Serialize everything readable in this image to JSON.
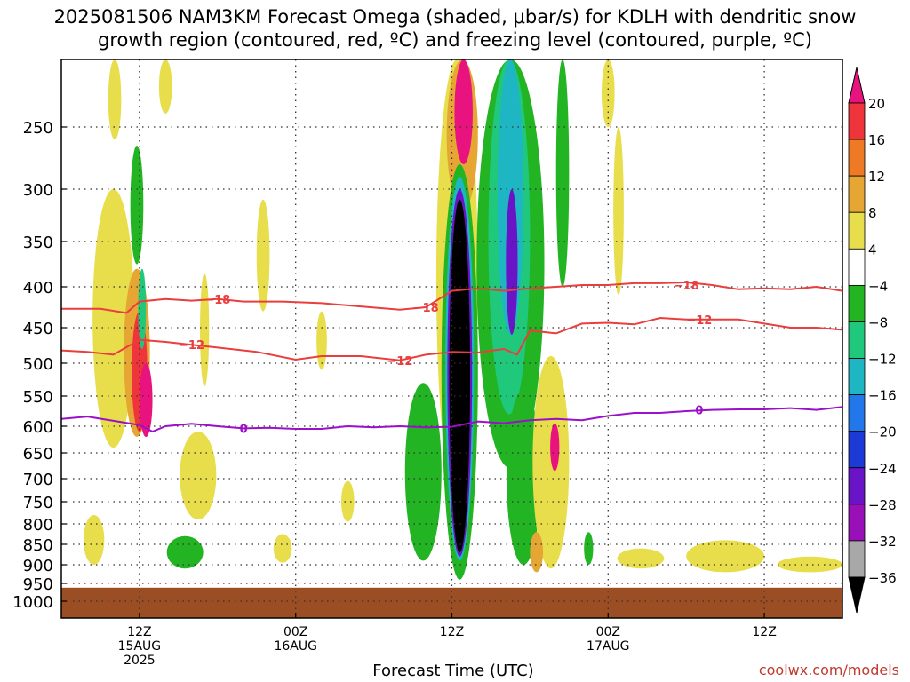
{
  "title": {
    "line1": "2025081506 NAM3KM Forecast Omega (shaded, μbar/s) for KDLH with dendritic snow",
    "line2": "growth region (contoured, red, ºC) and freezing level (contoured, purple, ºC)"
  },
  "credit": "coolwx.com/models",
  "chart_data": {
    "type": "heatmap",
    "xlabel": "Forecast Time (UTC)",
    "ylabel": "",
    "x_unit": "hours from 2025081506",
    "xlim": [
      0,
      60
    ],
    "ylim": [
      1050,
      200
    ],
    "y_ticks": [
      250,
      300,
      350,
      400,
      450,
      500,
      550,
      600,
      650,
      700,
      750,
      800,
      850,
      900,
      950,
      1000
    ],
    "x_ticks": [
      {
        "t": 6,
        "lines": [
          "12Z",
          "15AUG",
          "2025"
        ]
      },
      {
        "t": 18,
        "lines": [
          "00Z",
          "16AUG"
        ]
      },
      {
        "t": 30,
        "lines": [
          "12Z",
          ""
        ]
      },
      {
        "t": 42,
        "lines": [
          "00Z",
          "17AUG"
        ]
      },
      {
        "t": 54,
        "lines": [
          "12Z",
          ""
        ]
      }
    ],
    "colorbar": {
      "labels": [
        "20",
        "16",
        "12",
        "8",
        "4",
        "−4",
        "−8",
        "−12",
        "−16",
        "−20",
        "−24",
        "−28",
        "−32",
        "−36"
      ],
      "colors": [
        "#e8137e",
        "#f0343c",
        "#ee7a25",
        "#e6a634",
        "#e8dd4a",
        "#ffffff",
        "#22b422",
        "#20c87c",
        "#1fb6c4",
        "#2277ea",
        "#1e3ad6",
        "#6a14c8",
        "#9a10b8",
        "#a8a8a8",
        "#000000"
      ]
    },
    "ground": {
      "color": "#9b4e24",
      "top_pressure": 962
    },
    "isotherm_labels": {
      "minus18": "−18",
      "minus12": "−12",
      "zero": "0"
    },
    "contours": [
      {
        "name": "−18",
        "color": "#ea3d3d",
        "points": [
          [
            0,
            427
          ],
          [
            3,
            427
          ],
          [
            5,
            432
          ],
          [
            6,
            418
          ],
          [
            8,
            415
          ],
          [
            10,
            417
          ],
          [
            12,
            415
          ],
          [
            14,
            418
          ],
          [
            17,
            418
          ],
          [
            20,
            420
          ],
          [
            23,
            424
          ],
          [
            26,
            428
          ],
          [
            28,
            425
          ],
          [
            30,
            405
          ],
          [
            32,
            402
          ],
          [
            34,
            405
          ],
          [
            36,
            402
          ],
          [
            38,
            400
          ],
          [
            40,
            398
          ],
          [
            42,
            398
          ],
          [
            44,
            396
          ],
          [
            46,
            396
          ],
          [
            48,
            395
          ],
          [
            50,
            398
          ],
          [
            52,
            403
          ],
          [
            54,
            402
          ],
          [
            56,
            403
          ],
          [
            58,
            400
          ],
          [
            60,
            405
          ]
        ],
        "labels": [
          [
            12,
            415
          ],
          [
            28,
            425
          ],
          [
            48,
            398
          ]
        ]
      },
      {
        "name": "−12",
        "color": "#ea3d3d",
        "points": [
          [
            0,
            482
          ],
          [
            2,
            484
          ],
          [
            4,
            488
          ],
          [
            6,
            467
          ],
          [
            8,
            470
          ],
          [
            10,
            474
          ],
          [
            12,
            478
          ],
          [
            15,
            484
          ],
          [
            18,
            495
          ],
          [
            20,
            490
          ],
          [
            23,
            490
          ],
          [
            26,
            496
          ],
          [
            28,
            488
          ],
          [
            30,
            484
          ],
          [
            32,
            485
          ],
          [
            34,
            480
          ],
          [
            35,
            488
          ],
          [
            36,
            454
          ],
          [
            38,
            458
          ],
          [
            40,
            445
          ],
          [
            42,
            444
          ],
          [
            44,
            446
          ],
          [
            46,
            438
          ],
          [
            48,
            440
          ],
          [
            50,
            440
          ],
          [
            52,
            440
          ],
          [
            54,
            445
          ],
          [
            56,
            450
          ],
          [
            58,
            450
          ],
          [
            60,
            453
          ]
        ],
        "labels": [
          [
            10,
            474
          ],
          [
            26,
            496
          ],
          [
            49,
            440
          ]
        ]
      },
      {
        "name": "0",
        "color": "#9b10c8",
        "points": [
          [
            0,
            588
          ],
          [
            2,
            584
          ],
          [
            4,
            591
          ],
          [
            6,
            598
          ],
          [
            7,
            610
          ],
          [
            8,
            600
          ],
          [
            10,
            596
          ],
          [
            12,
            600
          ],
          [
            14,
            604
          ],
          [
            16,
            603
          ],
          [
            18,
            605
          ],
          [
            20,
            605
          ],
          [
            22,
            600
          ],
          [
            24,
            602
          ],
          [
            26,
            600
          ],
          [
            28,
            602
          ],
          [
            30,
            601
          ],
          [
            32,
            592
          ],
          [
            34,
            595
          ],
          [
            36,
            590
          ],
          [
            38,
            588
          ],
          [
            40,
            590
          ],
          [
            42,
            583
          ],
          [
            44,
            578
          ],
          [
            46,
            578
          ],
          [
            48,
            575
          ],
          [
            50,
            573
          ],
          [
            52,
            572
          ],
          [
            54,
            572
          ],
          [
            56,
            570
          ],
          [
            58,
            573
          ],
          [
            60,
            568
          ]
        ],
        "labels": [
          [
            14,
            604
          ],
          [
            49,
            573
          ]
        ]
      }
    ],
    "shaded": [
      {
        "value": 4,
        "color": "#e8dd4a",
        "t_center": 4.0,
        "p_center": 470,
        "t_halfwidth": 1.6,
        "p_halfheight": 170
      },
      {
        "value": 8,
        "color": "#e6a634",
        "t_center": 5.8,
        "p_center": 500,
        "t_halfwidth": 1.0,
        "p_halfheight": 120
      },
      {
        "value": 16,
        "color": "#f0343c",
        "t_center": 6.0,
        "p_center": 520,
        "t_halfwidth": 0.6,
        "p_halfheight": 90
      },
      {
        "value": 20,
        "color": "#e8137e",
        "t_center": 6.5,
        "p_center": 560,
        "t_halfwidth": 0.5,
        "p_halfheight": 60
      },
      {
        "value": 4,
        "color": "#e8dd4a",
        "t_center": 4.1,
        "p_center": 180,
        "t_halfwidth": 0.5,
        "p_halfheight": 80
      },
      {
        "value": 4,
        "color": "#e8dd4a",
        "t_center": 8.0,
        "p_center": 180,
        "t_halfwidth": 0.5,
        "p_halfheight": 60
      },
      {
        "value": -8,
        "color": "#22b422",
        "t_center": 5.8,
        "p_center": 320,
        "t_halfwidth": 0.5,
        "p_halfheight": 55
      },
      {
        "value": -12,
        "color": "#20c87c",
        "t_center": 6.2,
        "p_center": 430,
        "t_halfwidth": 0.3,
        "p_halfheight": 50
      },
      {
        "value": 4,
        "color": "#e8dd4a",
        "t_center": 10.5,
        "p_center": 700,
        "t_halfwidth": 1.4,
        "p_halfheight": 90
      },
      {
        "value": -8,
        "color": "#22b422",
        "t_center": 9.5,
        "p_center": 870,
        "t_halfwidth": 1.4,
        "p_halfheight": 40
      },
      {
        "value": 4,
        "color": "#e8dd4a",
        "t_center": 11.0,
        "p_center": 460,
        "t_halfwidth": 0.35,
        "p_halfheight": 75
      },
      {
        "value": 4,
        "color": "#e8dd4a",
        "t_center": 15.5,
        "p_center": 370,
        "t_halfwidth": 0.5,
        "p_halfheight": 60
      },
      {
        "value": 4,
        "color": "#e8dd4a",
        "t_center": 20.0,
        "p_center": 470,
        "t_halfwidth": 0.4,
        "p_halfheight": 40
      },
      {
        "value": 4,
        "color": "#e8dd4a",
        "t_center": 17.0,
        "p_center": 860,
        "t_halfwidth": 0.7,
        "p_halfheight": 35
      },
      {
        "value": 4,
        "color": "#e8dd4a",
        "t_center": 22.0,
        "p_center": 750,
        "t_halfwidth": 0.5,
        "p_halfheight": 45
      },
      {
        "value": 4,
        "color": "#e8dd4a",
        "t_center": 2.5,
        "p_center": 840,
        "t_halfwidth": 0.8,
        "p_halfheight": 60
      },
      {
        "value": -8,
        "color": "#22b422",
        "t_center": 27.8,
        "p_center": 710,
        "t_halfwidth": 1.4,
        "p_halfheight": 180
      },
      {
        "value": 4,
        "color": "#e8dd4a",
        "t_center": 30.4,
        "p_center": 420,
        "t_halfwidth": 1.6,
        "p_halfheight": 320
      },
      {
        "value": 8,
        "color": "#e6a634",
        "t_center": 30.8,
        "p_center": 250,
        "t_halfwidth": 1.2,
        "p_halfheight": 70
      },
      {
        "value": 20,
        "color": "#e8137e",
        "t_center": 30.9,
        "p_center": 200,
        "t_halfwidth": 0.7,
        "p_halfheight": 80
      },
      {
        "value": -8,
        "color": "#22b422",
        "t_center": 30.6,
        "p_center": 610,
        "t_halfwidth": 1.4,
        "p_halfheight": 330
      },
      {
        "value": -16,
        "color": "#1fb6c4",
        "t_center": 30.6,
        "p_center": 590,
        "t_halfwidth": 1.1,
        "p_halfheight": 300
      },
      {
        "value": -28,
        "color": "#6a14c8",
        "t_center": 30.6,
        "p_center": 590,
        "t_halfwidth": 0.95,
        "p_halfheight": 290
      },
      {
        "value": -36,
        "color": "#000000",
        "t_center": 30.6,
        "p_center": 590,
        "t_halfwidth": 0.8,
        "p_halfheight": 280
      },
      {
        "value": -8,
        "color": "#22b422",
        "t_center": 34.5,
        "p_center": 420,
        "t_halfwidth": 2.6,
        "p_halfheight": 260
      },
      {
        "value": -12,
        "color": "#20c87c",
        "t_center": 34.4,
        "p_center": 370,
        "t_halfwidth": 1.6,
        "p_halfheight": 210
      },
      {
        "value": -16,
        "color": "#1fb6c4",
        "t_center": 34.5,
        "p_center": 330,
        "t_halfwidth": 1.0,
        "p_halfheight": 130
      },
      {
        "value": -28,
        "color": "#6a14c8",
        "t_center": 34.6,
        "p_center": 380,
        "t_halfwidth": 0.45,
        "p_halfheight": 80
      },
      {
        "value": -8,
        "color": "#22b422",
        "t_center": 35.5,
        "p_center": 720,
        "t_halfwidth": 1.3,
        "p_halfheight": 180
      },
      {
        "value": 4,
        "color": "#e8dd4a",
        "t_center": 37.6,
        "p_center": 700,
        "t_halfwidth": 1.4,
        "p_halfheight": 210
      },
      {
        "value": 20,
        "color": "#e8137e",
        "t_center": 37.9,
        "p_center": 640,
        "t_halfwidth": 0.35,
        "p_halfheight": 45
      },
      {
        "value": 8,
        "color": "#e6a634",
        "t_center": 36.5,
        "p_center": 870,
        "t_halfwidth": 0.5,
        "p_halfheight": 50
      },
      {
        "value": -8,
        "color": "#22b422",
        "t_center": 40.5,
        "p_center": 860,
        "t_halfwidth": 0.35,
        "p_halfheight": 40
      },
      {
        "value": -8,
        "color": "#22b422",
        "t_center": 38.5,
        "p_center": 280,
        "t_halfwidth": 0.5,
        "p_halfheight": 120
      },
      {
        "value": 4,
        "color": "#e8dd4a",
        "t_center": 42.8,
        "p_center": 330,
        "t_halfwidth": 0.4,
        "p_halfheight": 80
      },
      {
        "value": 4,
        "color": "#e8dd4a",
        "t_center": 42.0,
        "p_center": 170,
        "t_halfwidth": 0.5,
        "p_halfheight": 80
      },
      {
        "value": 4,
        "color": "#e8dd4a",
        "t_center": 44.5,
        "p_center": 885,
        "t_halfwidth": 1.8,
        "p_halfheight": 25
      },
      {
        "value": 4,
        "color": "#e8dd4a",
        "t_center": 51.0,
        "p_center": 880,
        "t_halfwidth": 3.0,
        "p_halfheight": 40
      },
      {
        "value": 4,
        "color": "#e8dd4a",
        "t_center": 57.5,
        "p_center": 900,
        "t_halfwidth": 2.5,
        "p_halfheight": 20
      }
    ]
  }
}
